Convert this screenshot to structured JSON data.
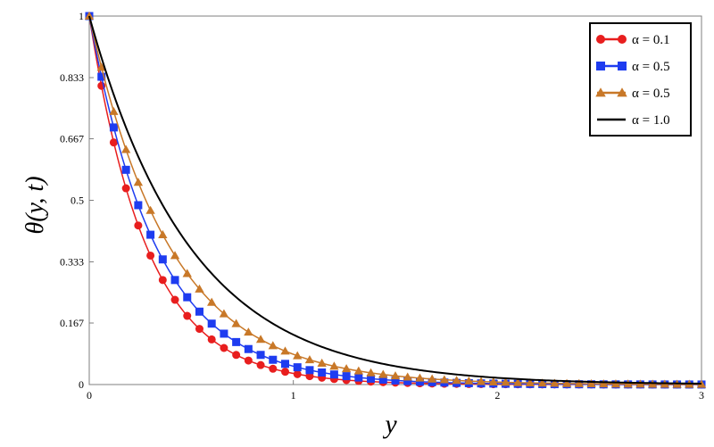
{
  "chart_data": {
    "type": "line",
    "xlabel": "y",
    "ylabel": "θ(y, t)",
    "xlim": [
      0,
      3
    ],
    "ylim": [
      0,
      1
    ],
    "xticks": [
      "0",
      "1",
      "2",
      "3"
    ],
    "yticks": [
      "0",
      "0.167",
      "0.333",
      "0.5",
      "0.667",
      "0.833",
      "1"
    ],
    "grid": false,
    "legend_position": "top-right",
    "series": [
      {
        "name": "α = 0.1",
        "color": "#e81e1e",
        "marker": "circle",
        "decay_rate": 3.5
      },
      {
        "name": "α = 0.5",
        "color": "#1e3cf0",
        "marker": "square",
        "decay_rate": 3.0
      },
      {
        "name": "α = 0.5",
        "color": "#c87828",
        "marker": "triangle",
        "decay_rate": 2.5
      },
      {
        "name": "α = 1.0",
        "color": "#000000",
        "marker": "none",
        "decay_rate": 2.0
      }
    ]
  }
}
